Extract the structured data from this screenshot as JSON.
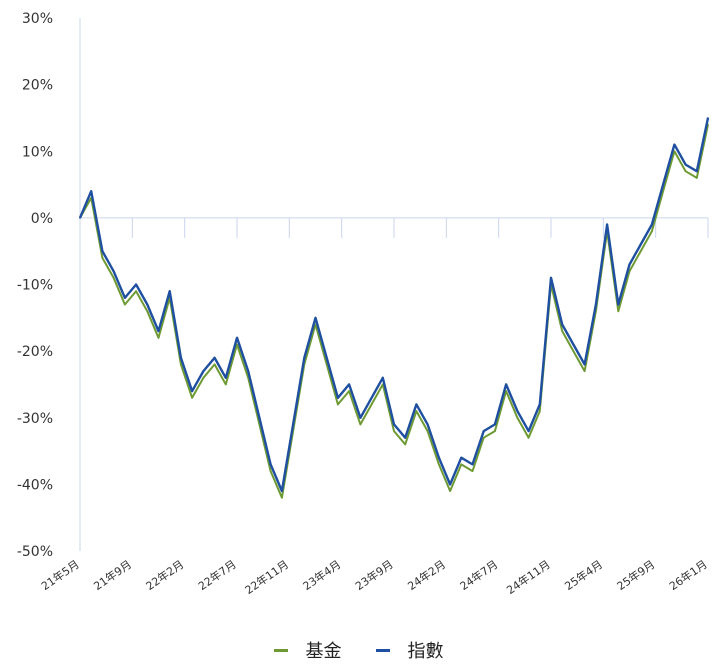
{
  "chart_data": {
    "type": "line",
    "title": "",
    "xlabel": "",
    "ylabel": "",
    "ylim": [
      -50,
      30
    ],
    "y_ticks": [
      30,
      20,
      10,
      0,
      -10,
      -20,
      -30,
      -40,
      -50
    ],
    "y_tick_labels": [
      "30%",
      "20%",
      "10%",
      "0%",
      "-10%",
      "-20%",
      "-30%",
      "-40%",
      "-50%"
    ],
    "x_tick_labels": [
      "21年5月",
      "21年9月",
      "22年2月",
      "22年7月",
      "22年11月",
      "23年4月",
      "23年9月",
      "24年2月",
      "24年7月",
      "24年11月",
      "25年4月",
      "25年9月",
      "26年1月"
    ],
    "x": [
      "2021-05",
      "2021-06",
      "2021-07",
      "2021-08",
      "2021-09",
      "2021-10",
      "2021-11",
      "2021-12",
      "2022-01",
      "2022-02",
      "2022-03",
      "2022-04",
      "2022-05",
      "2022-06",
      "2022-07",
      "2022-08",
      "2022-09",
      "2022-10",
      "2022-11",
      "2022-12",
      "2023-01",
      "2023-02",
      "2023-03",
      "2023-04",
      "2023-05",
      "2023-06",
      "2023-07",
      "2023-08",
      "2023-09",
      "2023-10",
      "2023-11",
      "2023-12",
      "2024-01",
      "2024-02",
      "2024-03",
      "2024-04",
      "2024-05",
      "2024-06",
      "2024-07",
      "2024-08",
      "2024-09",
      "2024-10",
      "2024-11",
      "2024-12",
      "2025-01",
      "2025-02",
      "2025-03",
      "2025-04",
      "2025-05",
      "2025-06",
      "2025-07",
      "2025-08",
      "2025-09",
      "2025-10",
      "2025-11",
      "2025-12",
      "2026-01"
    ],
    "series": [
      {
        "name": "基金",
        "color": "#6e9a34",
        "values": [
          0,
          3,
          -6,
          -9,
          -13,
          -11,
          -14,
          -18,
          -12,
          -22,
          -27,
          -24,
          -22,
          -25,
          -19,
          -24,
          -31,
          -38,
          -42,
          -32,
          -22,
          -16,
          -22,
          -28,
          -26,
          -31,
          -28,
          -25,
          -32,
          -34,
          -29,
          -32,
          -37,
          -41,
          -37,
          -38,
          -33,
          -32,
          -26,
          -30,
          -33,
          -29,
          -10,
          -17,
          -20,
          -23,
          -14,
          -2,
          -14,
          -8,
          -5,
          -2,
          4,
          10,
          7,
          6,
          14
        ]
      },
      {
        "name": "指數",
        "color": "#1f4fa0",
        "values": [
          0,
          4,
          -5,
          -8,
          -12,
          -10,
          -13,
          -17,
          -11,
          -21,
          -26,
          -23,
          -21,
          -24,
          -18,
          -23,
          -30,
          -37,
          -41,
          -31,
          -21,
          -15,
          -21,
          -27,
          -25,
          -30,
          -27,
          -24,
          -31,
          -33,
          -28,
          -31,
          -36,
          -40,
          -36,
          -37,
          -32,
          -31,
          -25,
          -29,
          -32,
          -28,
          -9,
          -16,
          -19,
          -22,
          -13,
          -1,
          -13,
          -7,
          -4,
          -1,
          5,
          11,
          8,
          7,
          15
        ]
      }
    ],
    "grid": false,
    "legend_position": "bottom-center"
  }
}
